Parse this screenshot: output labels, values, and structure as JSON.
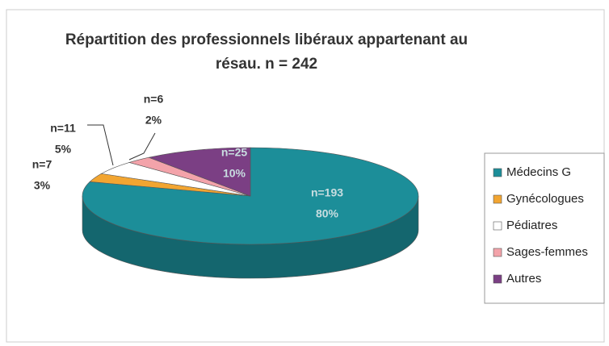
{
  "chart_data": {
    "type": "pie3d",
    "title": "Répartition des professionnels libéraux appartenant au",
    "subtitle": "résau. n = 242",
    "categories": [
      "Médecins G",
      "Gynécologues",
      "Pédiatres",
      "Sages-femmes",
      "Autres"
    ],
    "values": [
      193,
      7,
      11,
      6,
      25
    ],
    "value_labels": [
      "n=193",
      "n=7",
      "n=11",
      "n=6",
      "n=25"
    ],
    "percent_labels": [
      "80%",
      "3%",
      "5%",
      "2%",
      "10%"
    ],
    "colors": [
      "#1c8e99",
      "#f2a531",
      "#ffffff",
      "#f3a3aa",
      "#7b3f84"
    ],
    "legend": "right"
  }
}
